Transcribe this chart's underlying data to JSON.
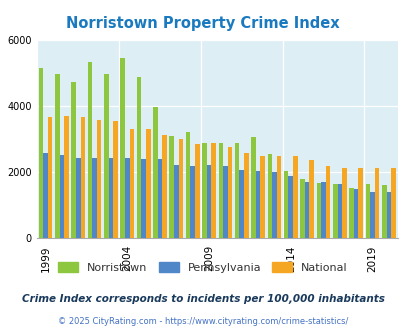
{
  "title": "Norristown Property Crime Index",
  "years": [
    1999,
    2000,
    2001,
    2002,
    2003,
    2004,
    2005,
    2006,
    2007,
    2008,
    2009,
    2010,
    2011,
    2012,
    2013,
    2014,
    2015,
    2016,
    2017,
    2018,
    2019,
    2020
  ],
  "norristown": [
    5150,
    4950,
    4720,
    5320,
    4950,
    5450,
    4880,
    3950,
    3080,
    3200,
    2870,
    2870,
    2870,
    3060,
    2520,
    2010,
    1780,
    1650,
    1620,
    1510,
    1620,
    1600
  ],
  "pennsylvania": [
    2570,
    2510,
    2400,
    2420,
    2420,
    2420,
    2370,
    2380,
    2200,
    2170,
    2190,
    2160,
    2060,
    2030,
    1990,
    1880,
    1690,
    1690,
    1630,
    1480,
    1390,
    1390
  ],
  "national": [
    3650,
    3680,
    3640,
    3570,
    3530,
    3300,
    3280,
    3100,
    2980,
    2850,
    2860,
    2760,
    2560,
    2480,
    2480,
    2460,
    2360,
    2180,
    2120,
    2110,
    2110,
    2110
  ],
  "norristown_color": "#8dc63f",
  "pennsylvania_color": "#4f87c8",
  "national_color": "#f5a623",
  "bg_color": "#ddeef5",
  "ylim": [
    0,
    6000
  ],
  "yticks": [
    0,
    2000,
    4000,
    6000
  ],
  "xtick_years": [
    1999,
    2004,
    2009,
    2014,
    2019
  ],
  "subtitle": "Crime Index corresponds to incidents per 100,000 inhabitants",
  "footnote": "© 2025 CityRating.com - https://www.cityrating.com/crime-statistics/",
  "legend_labels": [
    "Norristown",
    "Pennsylvania",
    "National"
  ],
  "legend_text_color": "#333333",
  "subtitle_color": "#1a3a5c",
  "footnote_color": "#4472c4"
}
